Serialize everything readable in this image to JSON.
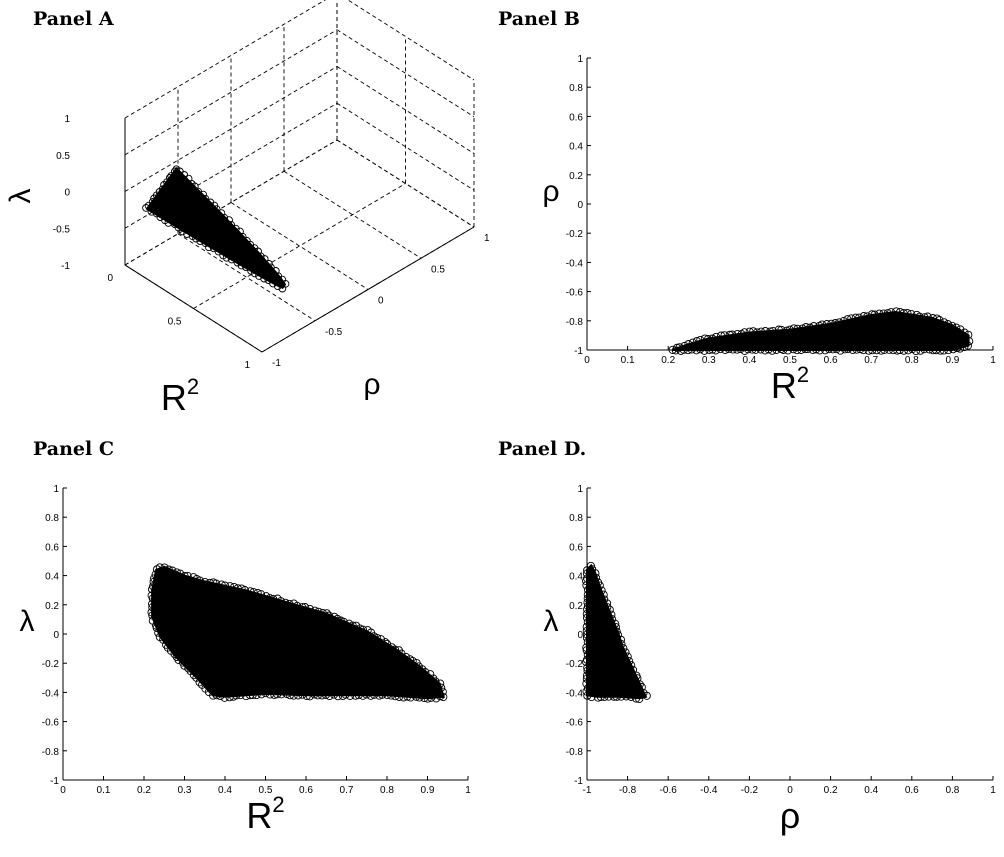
{
  "panel_titles": [
    "Panel A",
    "Panel B",
    "Panel C",
    "Panel D."
  ],
  "colors": {
    "ink": "#000000",
    "background": "#ffffff"
  },
  "chart_data": [
    {
      "id": "A",
      "type": "scatter",
      "projection": "3d",
      "xlabel": "R",
      "xlabel_sup": "2",
      "ylabel": "ρ",
      "zlabel": "λ",
      "xlim": [
        0,
        1
      ],
      "ylim": [
        -1,
        1
      ],
      "zlim": [
        -1,
        1
      ],
      "xticks": [
        "0",
        "0.5",
        "1"
      ],
      "yticks": [
        "-1",
        "-0.5",
        "0",
        "0.5",
        "1"
      ],
      "zticks": [
        "-1",
        "-0.5",
        "0",
        "0.5",
        "1"
      ],
      "grid": true,
      "marker": "open-circle",
      "series_hull": [
        [
          0.23,
          0.43
        ],
        [
          0.35,
          0.36
        ],
        [
          0.55,
          0.18
        ],
        [
          0.75,
          0.0
        ],
        [
          0.88,
          -0.22
        ],
        [
          0.94,
          -0.42
        ],
        [
          0.92,
          -0.44
        ],
        [
          0.7,
          -0.42
        ],
        [
          0.45,
          -0.42
        ],
        [
          0.38,
          -0.43
        ],
        [
          0.3,
          -0.2
        ],
        [
          0.23,
          0.08
        ]
      ]
    },
    {
      "id": "B",
      "type": "scatter",
      "xlabel": "R",
      "xlabel_sup": "2",
      "ylabel": "ρ",
      "xlim": [
        0,
        1
      ],
      "ylim": [
        -1,
        1
      ],
      "xticks": [
        "0",
        "0.1",
        "0.2",
        "0.3",
        "0.4",
        "0.5",
        "0.6",
        "0.7",
        "0.8",
        "0.9",
        "1"
      ],
      "yticks": [
        "-1",
        "-0.8",
        "-0.6",
        "-0.4",
        "-0.2",
        "0",
        "0.2",
        "0.4",
        "0.6",
        "0.8",
        "1"
      ],
      "grid": false,
      "marker": "open-circle",
      "series_hull": [
        [
          0.21,
          -1.0
        ],
        [
          0.25,
          -0.96
        ],
        [
          0.3,
          -0.92
        ],
        [
          0.4,
          -0.88
        ],
        [
          0.5,
          -0.86
        ],
        [
          0.6,
          -0.82
        ],
        [
          0.7,
          -0.76
        ],
        [
          0.76,
          -0.74
        ],
        [
          0.85,
          -0.78
        ],
        [
          0.9,
          -0.83
        ],
        [
          0.94,
          -0.9
        ],
        [
          0.94,
          -0.97
        ],
        [
          0.9,
          -1.0
        ]
      ]
    },
    {
      "id": "C",
      "type": "scatter",
      "xlabel": "R",
      "xlabel_sup": "2",
      "ylabel": "λ",
      "xlim": [
        0,
        1
      ],
      "ylim": [
        -1,
        1
      ],
      "xticks": [
        "0",
        "0.1",
        "0.2",
        "0.3",
        "0.4",
        "0.5",
        "0.6",
        "0.7",
        "0.8",
        "0.9",
        "1"
      ],
      "yticks": [
        "-1",
        "-0.8",
        "-0.6",
        "-0.4",
        "-0.2",
        "0",
        "0.2",
        "0.4",
        "0.6",
        "0.8",
        "1"
      ],
      "grid": false,
      "marker": "open-circle",
      "series_hull": [
        [
          0.23,
          0.44
        ],
        [
          0.25,
          0.46
        ],
        [
          0.3,
          0.4
        ],
        [
          0.35,
          0.36
        ],
        [
          0.45,
          0.3
        ],
        [
          0.55,
          0.22
        ],
        [
          0.65,
          0.14
        ],
        [
          0.75,
          0.02
        ],
        [
          0.82,
          -0.1
        ],
        [
          0.88,
          -0.22
        ],
        [
          0.93,
          -0.34
        ],
        [
          0.94,
          -0.43
        ],
        [
          0.9,
          -0.44
        ],
        [
          0.8,
          -0.42
        ],
        [
          0.7,
          -0.42
        ],
        [
          0.6,
          -0.42
        ],
        [
          0.5,
          -0.41
        ],
        [
          0.4,
          -0.43
        ],
        [
          0.37,
          -0.42
        ],
        [
          0.33,
          -0.3
        ],
        [
          0.28,
          -0.16
        ],
        [
          0.24,
          -0.02
        ],
        [
          0.22,
          0.12
        ],
        [
          0.22,
          0.3
        ]
      ]
    },
    {
      "id": "D",
      "type": "scatter",
      "xlabel": "ρ",
      "ylabel": "λ",
      "xlim": [
        -1,
        1
      ],
      "ylim": [
        -1,
        1
      ],
      "xticks": [
        "-1",
        "-0.8",
        "-0.6",
        "-0.4",
        "-0.2",
        "0",
        "0.2",
        "0.4",
        "0.6",
        "0.8",
        "1"
      ],
      "yticks": [
        "-1",
        "-0.8",
        "-0.6",
        "-0.4",
        "-0.2",
        "0",
        "0.2",
        "0.4",
        "0.6",
        "0.8",
        "1"
      ],
      "grid": false,
      "marker": "open-circle",
      "series_hull": [
        [
          -1.0,
          0.44
        ],
        [
          -0.98,
          0.47
        ],
        [
          -0.96,
          0.42
        ],
        [
          -0.93,
          0.3
        ],
        [
          -0.89,
          0.16
        ],
        [
          -0.85,
          0.02
        ],
        [
          -0.82,
          -0.1
        ],
        [
          -0.78,
          -0.22
        ],
        [
          -0.74,
          -0.34
        ],
        [
          -0.71,
          -0.43
        ],
        [
          -0.74,
          -0.44
        ],
        [
          -0.85,
          -0.43
        ],
        [
          -0.95,
          -0.43
        ],
        [
          -1.0,
          -0.42
        ]
      ]
    }
  ]
}
